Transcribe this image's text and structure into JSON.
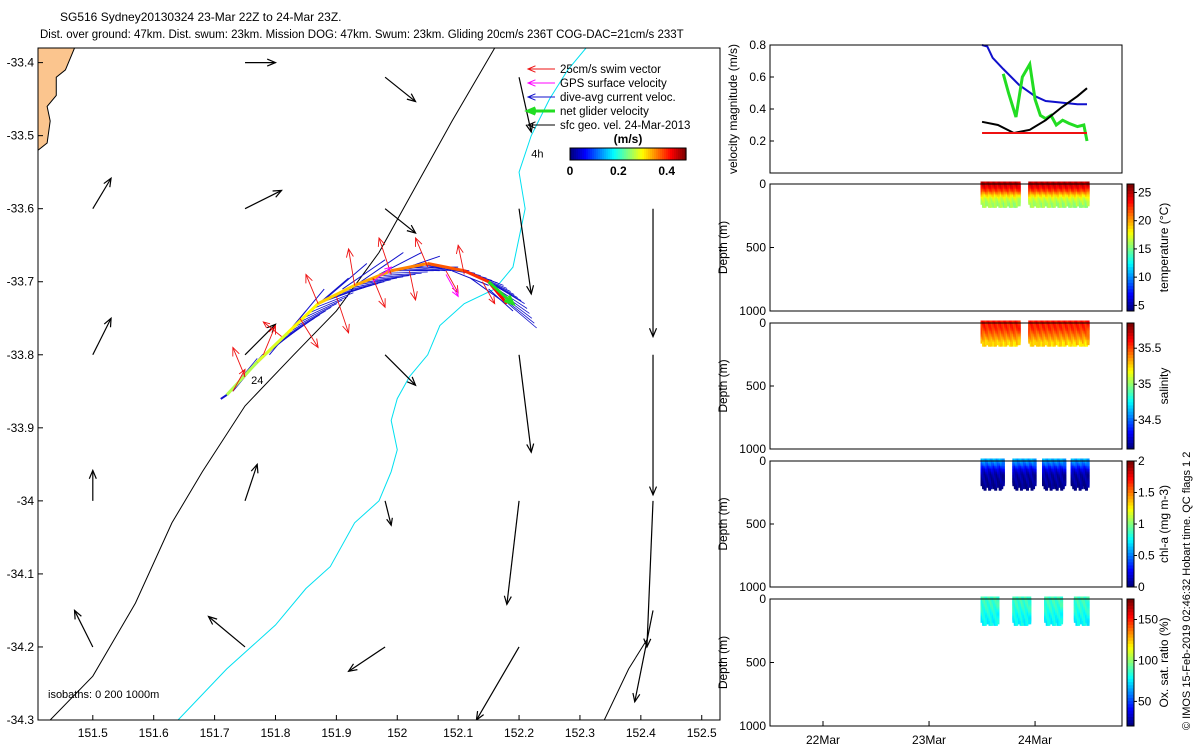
{
  "title": {
    "line1": "SG516 Sydney20130324 23-Mar 22Z to 24-Mar 23Z.",
    "line2": "Dist. over ground: 47km. Dist. swum: 23km. Mission DOG: 47km. Swum: 23km. Gliding 20cm/s 236T COG-DAC=21cm/s 233T"
  },
  "footer_text": "© IMOS 15-Feb-2019 02:46:32 Hobart time. QC flags 1  2",
  "colors": {
    "land": "#fbc58e",
    "isobath_200": "#000000",
    "isobath_1000": "#00e0f0",
    "swim_vector": "#ee1111",
    "gps_velocity": "#ff00ff",
    "dive_avg_current": "#1010cc",
    "net_glider_velocity": "#22dd22",
    "sfc_geo_velocity": "#000000"
  },
  "chart_data": [
    {
      "type": "scatter",
      "panel": "map",
      "xlim": [
        151.41,
        152.53
      ],
      "ylim": [
        -34.3,
        -33.38
      ],
      "x_ticks": [
        151.5,
        151.6,
        151.7,
        151.8,
        151.9,
        152,
        152.1,
        152.2,
        152.3,
        152.4,
        152.5
      ],
      "x_tick_labels": [
        "151.5",
        "151.6",
        "151.7",
        "151.8",
        "151.9",
        "152",
        "152.1",
        "152.2",
        "152.3",
        "152.4",
        "152.5"
      ],
      "y_ticks": [
        -33.4,
        -33.5,
        -33.6,
        -33.7,
        -33.8,
        -33.9,
        -34,
        -34.1,
        -34.2,
        -34.3
      ],
      "y_tick_labels": [
        "-33.4",
        "-33.5",
        "-33.6",
        "-33.7",
        "-33.8",
        "-33.9",
        "-34",
        "-34.1",
        "-34.2",
        "-34.3"
      ],
      "legend": {
        "placement": "top-right",
        "entries": [
          "25cm/s swim vector",
          "GPS surface velocity",
          "dive-avg current veloc.",
          "net glider velocity",
          "sfc geo. vel. 24-Mar-2013"
        ]
      },
      "colorbar": {
        "label": "(m/s)",
        "ticks": [
          0,
          0.2,
          0.4
        ],
        "tick_labels": [
          "0",
          "0.2",
          "0.4"
        ],
        "range": [
          0,
          0.48
        ]
      },
      "isobaths_label": "isobaths: 0   200  1000m",
      "track_labels": [
        {
          "text": "24",
          "lon": 151.76,
          "lat": -33.84
        },
        {
          "text": "4h",
          "lon": 152.22,
          "lat": -33.53
        }
      ],
      "land_boundary": [
        [
          151.41,
          -33.38
        ],
        [
          151.47,
          -33.38
        ],
        [
          151.455,
          -33.41
        ],
        [
          151.44,
          -33.42
        ],
        [
          151.44,
          -33.445
        ],
        [
          151.425,
          -33.46
        ],
        [
          151.43,
          -33.48
        ],
        [
          151.425,
          -33.51
        ],
        [
          151.41,
          -33.52
        ]
      ],
      "isobath_200": [
        [
          151.43,
          -34.3
        ],
        [
          151.5,
          -34.24
        ],
        [
          151.57,
          -34.14
        ],
        [
          151.63,
          -34.03
        ],
        [
          151.68,
          -33.96
        ],
        [
          151.75,
          -33.87
        ],
        [
          151.83,
          -33.8
        ],
        [
          151.9,
          -33.74
        ],
        [
          151.97,
          -33.66
        ],
        [
          152.03,
          -33.57
        ],
        [
          152.09,
          -33.48
        ],
        [
          152.16,
          -33.38
        ]
      ],
      "isobath_1000": [
        [
          151.64,
          -34.3
        ],
        [
          151.72,
          -34.23
        ],
        [
          151.8,
          -34.17
        ],
        [
          151.85,
          -34.12
        ],
        [
          151.89,
          -34.09
        ],
        [
          151.93,
          -34.03
        ],
        [
          151.97,
          -34.0
        ],
        [
          151.99,
          -33.96
        ],
        [
          152.0,
          -33.93
        ],
        [
          151.99,
          -33.89
        ],
        [
          152.0,
          -33.86
        ],
        [
          152.02,
          -33.83
        ],
        [
          152.05,
          -33.8
        ],
        [
          152.07,
          -33.76
        ],
        [
          152.11,
          -33.73
        ],
        [
          152.16,
          -33.71
        ],
        [
          152.19,
          -33.68
        ],
        [
          152.2,
          -33.64
        ],
        [
          152.21,
          -33.6
        ],
        [
          152.2,
          -33.55
        ],
        [
          152.22,
          -33.5
        ],
        [
          152.25,
          -33.45
        ],
        [
          152.28,
          -33.41
        ],
        [
          152.31,
          -33.38
        ]
      ],
      "isobath_1000_right": [
        [
          152.34,
          -34.3
        ],
        [
          152.38,
          -34.23
        ],
        [
          152.41,
          -34.19
        ]
      ],
      "glider_track": [
        [
          151.72,
          -33.855
        ],
        [
          151.77,
          -33.81
        ],
        [
          151.82,
          -33.77
        ],
        [
          151.87,
          -33.73
        ],
        [
          151.93,
          -33.705
        ],
        [
          151.99,
          -33.685
        ],
        [
          152.05,
          -33.675
        ],
        [
          152.11,
          -33.685
        ],
        [
          152.15,
          -33.7
        ],
        [
          152.18,
          -33.73
        ]
      ],
      "dive_avg_current_vectors": [
        [
          151.73,
          -33.85,
          0.05,
          0.05
        ],
        [
          151.76,
          -33.82,
          0.06,
          0.05
        ],
        [
          151.79,
          -33.8,
          0.06,
          0.06
        ],
        [
          151.82,
          -33.77,
          0.06,
          0.06
        ],
        [
          151.85,
          -33.745,
          0.07,
          0.05
        ],
        [
          151.88,
          -33.725,
          0.07,
          0.05
        ],
        [
          151.91,
          -33.71,
          0.07,
          0.04
        ],
        [
          151.94,
          -33.7,
          0.07,
          0.04
        ],
        [
          151.97,
          -33.69,
          0.07,
          0.03
        ],
        [
          152.0,
          -33.685,
          0.07,
          0.02
        ],
        [
          152.03,
          -33.68,
          0.07,
          0.0
        ],
        [
          152.06,
          -33.68,
          0.07,
          -0.01
        ],
        [
          152.09,
          -33.685,
          0.06,
          -0.02
        ],
        [
          152.12,
          -33.695,
          0.05,
          -0.03
        ],
        [
          152.15,
          -33.71,
          0.04,
          -0.03
        ]
      ],
      "swim_vectors": [
        [
          151.73,
          -33.85,
          0.02,
          0.03
        ],
        [
          151.75,
          -33.83,
          -0.02,
          0.04
        ],
        [
          151.78,
          -33.8,
          0.02,
          0.04
        ],
        [
          151.81,
          -33.775,
          -0.03,
          0.02
        ],
        [
          151.84,
          -33.75,
          0.03,
          -0.04
        ],
        [
          151.87,
          -33.73,
          -0.02,
          0.04
        ],
        [
          151.9,
          -33.72,
          0.02,
          -0.05
        ],
        [
          151.93,
          -33.705,
          -0.01,
          0.05
        ],
        [
          151.96,
          -33.695,
          0.02,
          -0.04
        ],
        [
          151.99,
          -33.69,
          -0.02,
          0.05
        ],
        [
          152.02,
          -33.685,
          0.01,
          -0.04
        ],
        [
          152.05,
          -33.68,
          -0.02,
          0.04
        ],
        [
          152.08,
          -33.685,
          0.02,
          -0.03
        ],
        [
          152.11,
          -33.69,
          -0.01,
          0.04
        ],
        [
          152.14,
          -33.7,
          0.02,
          -0.03
        ]
      ],
      "gps_vectors": [
        [
          151.96,
          -33.7,
          0.03,
          0.02
        ],
        [
          152.08,
          -33.69,
          0.02,
          -0.03
        ]
      ],
      "net_glider_vector": [
        152.15,
        -33.7,
        0.04,
        -0.03
      ],
      "sfc_geo_vectors": [
        [
          151.5,
          -33.6,
          0.03,
          0.05
        ],
        [
          151.5,
          -33.8,
          0.03,
          0.06
        ],
        [
          151.5,
          -34.0,
          0.0,
          0.05
        ],
        [
          151.5,
          -34.2,
          -0.03,
          0.06
        ],
        [
          151.75,
          -33.4,
          0.05,
          0.0
        ],
        [
          151.75,
          -33.6,
          0.06,
          0.03
        ],
        [
          151.75,
          -33.8,
          0.05,
          0.05
        ],
        [
          151.75,
          -34.0,
          0.02,
          0.06
        ],
        [
          151.75,
          -34.2,
          -0.06,
          0.05
        ],
        [
          151.98,
          -33.42,
          0.05,
          -0.04
        ],
        [
          151.98,
          -33.6,
          0.05,
          -0.04
        ],
        [
          151.98,
          -33.8,
          0.05,
          -0.05
        ],
        [
          151.98,
          -34.0,
          0.01,
          -0.04
        ],
        [
          151.98,
          -34.2,
          -0.06,
          -0.04
        ],
        [
          152.2,
          -33.42,
          0.02,
          -0.09
        ],
        [
          152.2,
          -33.6,
          0.02,
          -0.14
        ],
        [
          152.2,
          -33.8,
          0.02,
          -0.16
        ],
        [
          152.2,
          -34.0,
          -0.02,
          -0.17
        ],
        [
          152.2,
          -34.2,
          -0.07,
          -0.12
        ],
        [
          152.42,
          -33.6,
          0.0,
          -0.21
        ],
        [
          152.42,
          -33.8,
          0.0,
          -0.23
        ],
        [
          152.42,
          -34.0,
          -0.01,
          -0.24
        ],
        [
          152.42,
          -34.15,
          -0.03,
          -0.15
        ]
      ]
    },
    {
      "type": "line",
      "panel": "velocity",
      "ylabel": "velocity magnitude (m/s)",
      "ylim": [
        0,
        0.8
      ],
      "y_ticks": [
        0.2,
        0.4,
        0.6,
        0.8
      ],
      "y_tick_labels": [
        "0.2",
        "0.4",
        "0.6",
        "0.8"
      ],
      "xlim": [
        0,
        3.32
      ],
      "series": [
        {
          "color": "#1010cc",
          "x": [
            2.0,
            2.05,
            2.1,
            2.2,
            2.35,
            2.5,
            2.6,
            2.75,
            2.9,
            2.99
          ],
          "y": [
            0.8,
            0.79,
            0.72,
            0.65,
            0.55,
            0.48,
            0.45,
            0.44,
            0.43,
            0.43
          ]
        },
        {
          "color": "#22dd22",
          "x": [
            2.2,
            2.25,
            2.32,
            2.38,
            2.45,
            2.5,
            2.55,
            2.6,
            2.65,
            2.7,
            2.76,
            2.82,
            2.9,
            2.96,
            2.99
          ],
          "y": [
            0.62,
            0.5,
            0.35,
            0.6,
            0.68,
            0.46,
            0.36,
            0.34,
            0.36,
            0.3,
            0.33,
            0.31,
            0.29,
            0.3,
            0.2
          ]
        },
        {
          "color": "#000000",
          "x": [
            2.0,
            2.15,
            2.3,
            2.45,
            2.6,
            2.75,
            2.9,
            2.99
          ],
          "y": [
            0.32,
            0.3,
            0.25,
            0.27,
            0.33,
            0.41,
            0.48,
            0.53
          ]
        },
        {
          "color": "#ee1111",
          "x": [
            2.0,
            2.99
          ],
          "y": [
            0.25,
            0.25
          ]
        }
      ]
    },
    {
      "type": "heatmap",
      "panel": "temperature",
      "ylabel": "Depth (m)",
      "clabel": "temperature (°C)",
      "ylim": [
        1000,
        0
      ],
      "y_ticks": [
        0,
        500,
        1000
      ],
      "y_tick_labels": [
        "0",
        "500",
        "1000"
      ],
      "clim": [
        4,
        26.5
      ],
      "c_ticks": [
        5,
        10,
        15,
        20,
        25
      ],
      "c_tick_labels": [
        "5",
        "10",
        "15",
        "20",
        "25"
      ],
      "dives": [
        [
          2.0,
          2.35
        ],
        [
          2.45,
          3.0
        ]
      ],
      "max_depth": 180,
      "profile": [
        [
          0,
          25
        ],
        [
          40,
          24
        ],
        [
          70,
          22
        ],
        [
          100,
          19
        ],
        [
          130,
          17
        ],
        [
          180,
          15.5
        ]
      ]
    },
    {
      "type": "heatmap",
      "panel": "salinity",
      "ylabel": "Depth (m)",
      "clabel": "salinity",
      "ylim": [
        1000,
        0
      ],
      "y_ticks": [
        0,
        500,
        1000
      ],
      "y_tick_labels": [
        "0",
        "500",
        "1000"
      ],
      "clim": [
        34.1,
        35.85
      ],
      "c_ticks": [
        34.5,
        35,
        35.5
      ],
      "c_tick_labels": [
        "34.5",
        "35",
        "35.5"
      ],
      "dives": [
        [
          2.0,
          2.35
        ],
        [
          2.45,
          3.0
        ]
      ],
      "max_depth": 180,
      "profile": [
        [
          0,
          35.6
        ],
        [
          60,
          35.55
        ],
        [
          100,
          35.45
        ],
        [
          140,
          35.35
        ],
        [
          180,
          35.2
        ]
      ]
    },
    {
      "type": "heatmap",
      "panel": "chla",
      "ylabel": "Depth (m)",
      "clabel": "chl-a (mg m-3)",
      "ylim": [
        1000,
        0
      ],
      "y_ticks": [
        0,
        500,
        1000
      ],
      "y_tick_labels": [
        "0",
        "500",
        "1000"
      ],
      "clim": [
        0,
        2
      ],
      "c_ticks": [
        0,
        0.5,
        1,
        1.5,
        2
      ],
      "c_tick_labels": [
        "0",
        "0.5",
        "1",
        "1.5",
        "2"
      ],
      "dives": [
        [
          2.0,
          2.2
        ],
        [
          2.3,
          2.5
        ],
        [
          2.58,
          2.78
        ],
        [
          2.85,
          3.0
        ]
      ],
      "max_depth": 220,
      "profile": [
        [
          0,
          0.6
        ],
        [
          40,
          0.45
        ],
        [
          80,
          0.2
        ],
        [
          120,
          0.08
        ],
        [
          220,
          0.03
        ]
      ]
    },
    {
      "type": "heatmap",
      "panel": "oxygen",
      "ylabel": "Depth (m)",
      "clabel": "Ox. sat. ratio (%)",
      "ylim": [
        1000,
        0
      ],
      "y_ticks": [
        0,
        500,
        1000
      ],
      "y_tick_labels": [
        "0",
        "500",
        "1000"
      ],
      "clim": [
        20,
        175
      ],
      "c_ticks": [
        50,
        100,
        150
      ],
      "c_tick_labels": [
        "50",
        "100",
        "150"
      ],
      "dives": [
        [
          2.0,
          2.15
        ],
        [
          2.3,
          2.45
        ],
        [
          2.6,
          2.75
        ],
        [
          2.88,
          3.0
        ]
      ],
      "max_depth": 200,
      "profile": [
        [
          0,
          88
        ],
        [
          80,
          85
        ],
        [
          140,
          80
        ],
        [
          200,
          78
        ]
      ]
    },
    {
      "type": "axis",
      "panel": "time_axis",
      "x_ticks": [
        0.5,
        1.5,
        2.5
      ],
      "x_tick_labels": [
        "22Mar",
        "23Mar",
        "24Mar"
      ]
    }
  ]
}
